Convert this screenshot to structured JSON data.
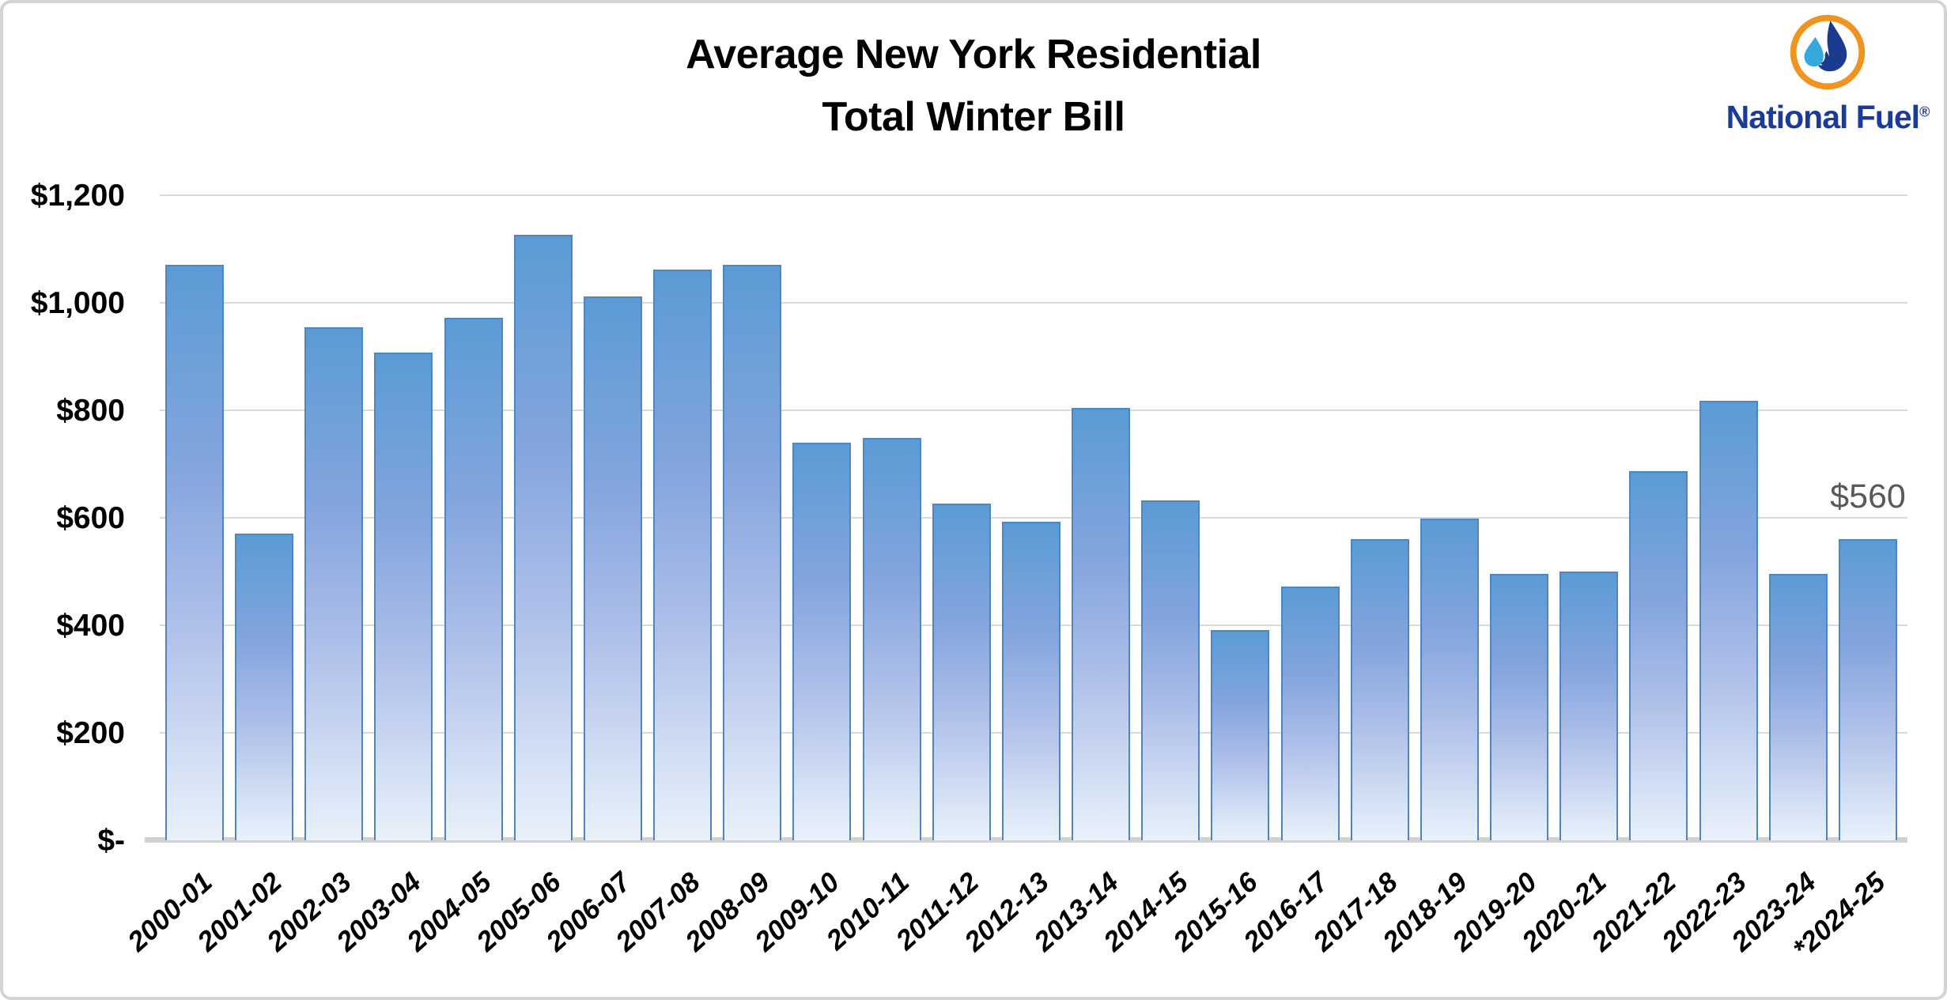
{
  "title": {
    "line1": "Average New York Residential",
    "line2": "Total Winter Bill"
  },
  "logo": {
    "text": "National Fuel",
    "registered_mark": "®",
    "icon": "flame-and-droplet-in-orange-ring",
    "text_color": "#1b3b99",
    "ring_color": "#f0941f",
    "flame_color": "#1b3b8f",
    "droplet_color": "#35a8dc"
  },
  "annotation": {
    "text": "$560",
    "color": "#595959"
  },
  "y_axis": {
    "tick_labels": [
      "$1,200",
      "$1,000",
      "$800",
      "$600",
      "$400",
      "$200",
      "$-"
    ],
    "tick_values": [
      1200,
      1000,
      800,
      600,
      400,
      200,
      0
    ]
  },
  "chart_data": {
    "type": "bar",
    "title": "Average New York Residential Total Winter Bill",
    "categories": [
      "2000-01",
      "2001-02",
      "2002-03",
      "2003-04",
      "2004-05",
      "2005-06",
      "2006-07",
      "2007-08",
      "2008-09",
      "2009-10",
      "2010-11",
      "2011-12",
      "2012-13",
      "2013-14",
      "2014-15",
      "2015-16",
      "2016-17",
      "2017-18",
      "2018-19",
      "2019-20",
      "2020-21",
      "2021-22",
      "2022-23",
      "2023-24",
      "*2024-25"
    ],
    "values": [
      1070,
      570,
      955,
      908,
      972,
      1127,
      1012,
      1062,
      1070,
      740,
      749,
      626,
      593,
      804,
      632,
      391,
      472,
      561,
      599,
      495,
      500,
      687,
      818,
      496,
      560
    ],
    "xlabel": "",
    "ylabel": "",
    "ylim": [
      0,
      1200
    ],
    "y_tick_step": 200,
    "grid": "horizontal",
    "legend": "none",
    "bar_style": {
      "fill_top": "#5b9bd5",
      "fill_bottom": "#eaf1fb",
      "border": "#4e86c4"
    },
    "gridline_color": "#d9d9d9",
    "annotations": [
      {
        "category": "*2024-25",
        "text": "$560"
      }
    ]
  }
}
